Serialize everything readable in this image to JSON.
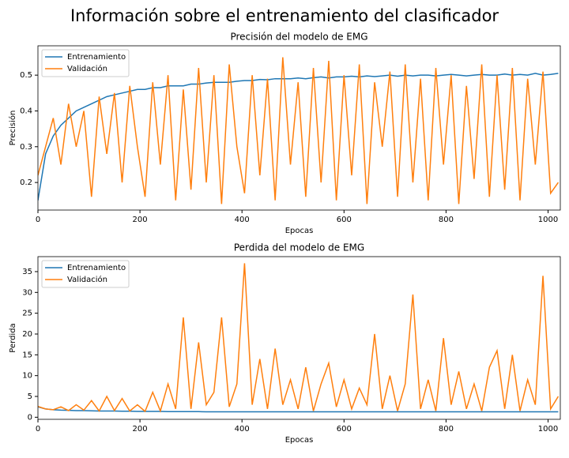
{
  "title": "Información sobre el entrenamiento del clasificador",
  "chart_data": [
    {
      "type": "line",
      "title": "Precisión del modelo de EMG",
      "x_label": "Epocas",
      "y_label": "Precisión",
      "x": [
        0,
        15,
        30,
        45,
        60,
        75,
        90,
        105,
        120,
        135,
        150,
        165,
        180,
        195,
        210,
        225,
        240,
        255,
        270,
        285,
        300,
        315,
        330,
        345,
        360,
        375,
        390,
        405,
        420,
        435,
        450,
        465,
        480,
        495,
        510,
        525,
        540,
        555,
        570,
        585,
        600,
        615,
        630,
        645,
        660,
        675,
        690,
        705,
        720,
        735,
        750,
        765,
        780,
        795,
        810,
        825,
        840,
        855,
        870,
        885,
        900,
        915,
        930,
        945,
        960,
        975,
        990,
        1005,
        1020
      ],
      "xlim": [
        0,
        1024
      ],
      "xticks": [
        0,
        200,
        400,
        600,
        800,
        1000
      ],
      "ylim": [
        0.123,
        0.582
      ],
      "yticks": [
        0.2,
        0.3,
        0.4,
        0.5
      ],
      "grid": false,
      "legend": "upper left",
      "series": [
        {
          "name": "Entrenamiento",
          "color": "#1f77b4",
          "values": [
            0.15,
            0.28,
            0.33,
            0.36,
            0.38,
            0.4,
            0.41,
            0.42,
            0.43,
            0.44,
            0.445,
            0.45,
            0.455,
            0.46,
            0.46,
            0.465,
            0.465,
            0.47,
            0.47,
            0.47,
            0.475,
            0.475,
            0.478,
            0.48,
            0.48,
            0.48,
            0.483,
            0.485,
            0.485,
            0.488,
            0.487,
            0.49,
            0.49,
            0.49,
            0.492,
            0.49,
            0.493,
            0.495,
            0.492,
            0.495,
            0.495,
            0.497,
            0.495,
            0.498,
            0.496,
            0.498,
            0.5,
            0.497,
            0.5,
            0.498,
            0.5,
            0.5,
            0.498,
            0.5,
            0.502,
            0.5,
            0.498,
            0.5,
            0.502,
            0.5,
            0.5,
            0.503,
            0.5,
            0.502,
            0.5,
            0.505,
            0.5,
            0.502,
            0.505
          ]
        },
        {
          "name": "Validación",
          "color": "#ff7f0e",
          "values": [
            0.22,
            0.3,
            0.38,
            0.25,
            0.42,
            0.3,
            0.4,
            0.16,
            0.44,
            0.28,
            0.45,
            0.2,
            0.47,
            0.3,
            0.16,
            0.48,
            0.25,
            0.5,
            0.15,
            0.46,
            0.18,
            0.52,
            0.2,
            0.5,
            0.14,
            0.53,
            0.3,
            0.17,
            0.5,
            0.22,
            0.49,
            0.15,
            0.55,
            0.25,
            0.48,
            0.16,
            0.52,
            0.2,
            0.54,
            0.15,
            0.5,
            0.22,
            0.53,
            0.14,
            0.48,
            0.3,
            0.51,
            0.16,
            0.53,
            0.2,
            0.49,
            0.15,
            0.52,
            0.25,
            0.5,
            0.14,
            0.47,
            0.21,
            0.53,
            0.16,
            0.5,
            0.18,
            0.52,
            0.15,
            0.49,
            0.25,
            0.51,
            0.17,
            0.2
          ]
        }
      ]
    },
    {
      "type": "line",
      "title": "Perdida del modelo de EMG",
      "x_label": "Epocas",
      "y_label": "Perdida",
      "x": [
        0,
        15,
        30,
        45,
        60,
        75,
        90,
        105,
        120,
        135,
        150,
        165,
        180,
        195,
        210,
        225,
        240,
        255,
        270,
        285,
        300,
        315,
        330,
        345,
        360,
        375,
        390,
        405,
        420,
        435,
        450,
        465,
        480,
        495,
        510,
        525,
        540,
        555,
        570,
        585,
        600,
        615,
        630,
        645,
        660,
        675,
        690,
        705,
        720,
        735,
        750,
        765,
        780,
        795,
        810,
        825,
        840,
        855,
        870,
        885,
        900,
        915,
        930,
        945,
        960,
        975,
        990,
        1005,
        1020
      ],
      "xlim": [
        0,
        1024
      ],
      "xticks": [
        0,
        200,
        400,
        600,
        800,
        1000
      ],
      "ylim": [
        -0.5,
        38.6
      ],
      "yticks": [
        0,
        5,
        10,
        15,
        20,
        25,
        30,
        35
      ],
      "grid": false,
      "legend": "upper left",
      "series": [
        {
          "name": "Entrenamiento",
          "color": "#1f77b4",
          "values": [
            2.5,
            2.0,
            1.8,
            1.7,
            1.65,
            1.6,
            1.6,
            1.55,
            1.5,
            1.5,
            1.5,
            1.45,
            1.45,
            1.4,
            1.4,
            1.4,
            1.4,
            1.35,
            1.35,
            1.35,
            1.35,
            1.35,
            1.3,
            1.3,
            1.3,
            1.3,
            1.3,
            1.3,
            1.3,
            1.3,
            1.3,
            1.3,
            1.3,
            1.3,
            1.3,
            1.3,
            1.3,
            1.3,
            1.3,
            1.3,
            1.3,
            1.3,
            1.3,
            1.3,
            1.3,
            1.3,
            1.3,
            1.3,
            1.3,
            1.3,
            1.3,
            1.3,
            1.3,
            1.3,
            1.3,
            1.3,
            1.3,
            1.3,
            1.3,
            1.3,
            1.3,
            1.3,
            1.3,
            1.3,
            1.3,
            1.3,
            1.3,
            1.3,
            1.3
          ]
        },
        {
          "name": "Validación",
          "color": "#ff7f0e",
          "values": [
            2.6,
            2.0,
            1.8,
            2.5,
            1.6,
            3.0,
            1.7,
            4.0,
            1.5,
            5.0,
            1.6,
            4.5,
            1.5,
            3.0,
            1.4,
            6.0,
            1.5,
            8.0,
            2.0,
            24.0,
            2.0,
            18.0,
            3.0,
            6.0,
            24.0,
            2.5,
            8.0,
            37.0,
            3.0,
            14.0,
            2.0,
            16.5,
            3.0,
            9.0,
            2.0,
            12.0,
            1.5,
            8.0,
            13.0,
            2.5,
            9.0,
            2.0,
            7.0,
            3.0,
            20.0,
            2.0,
            10.0,
            1.5,
            8.0,
            29.5,
            2.0,
            9.0,
            1.5,
            19.0,
            3.0,
            11.0,
            2.0,
            8.0,
            1.5,
            12.0,
            16.0,
            2.0,
            15.0,
            1.5,
            9.0,
            3.0,
            34.0,
            2.0,
            5.0
          ]
        }
      ]
    }
  ]
}
